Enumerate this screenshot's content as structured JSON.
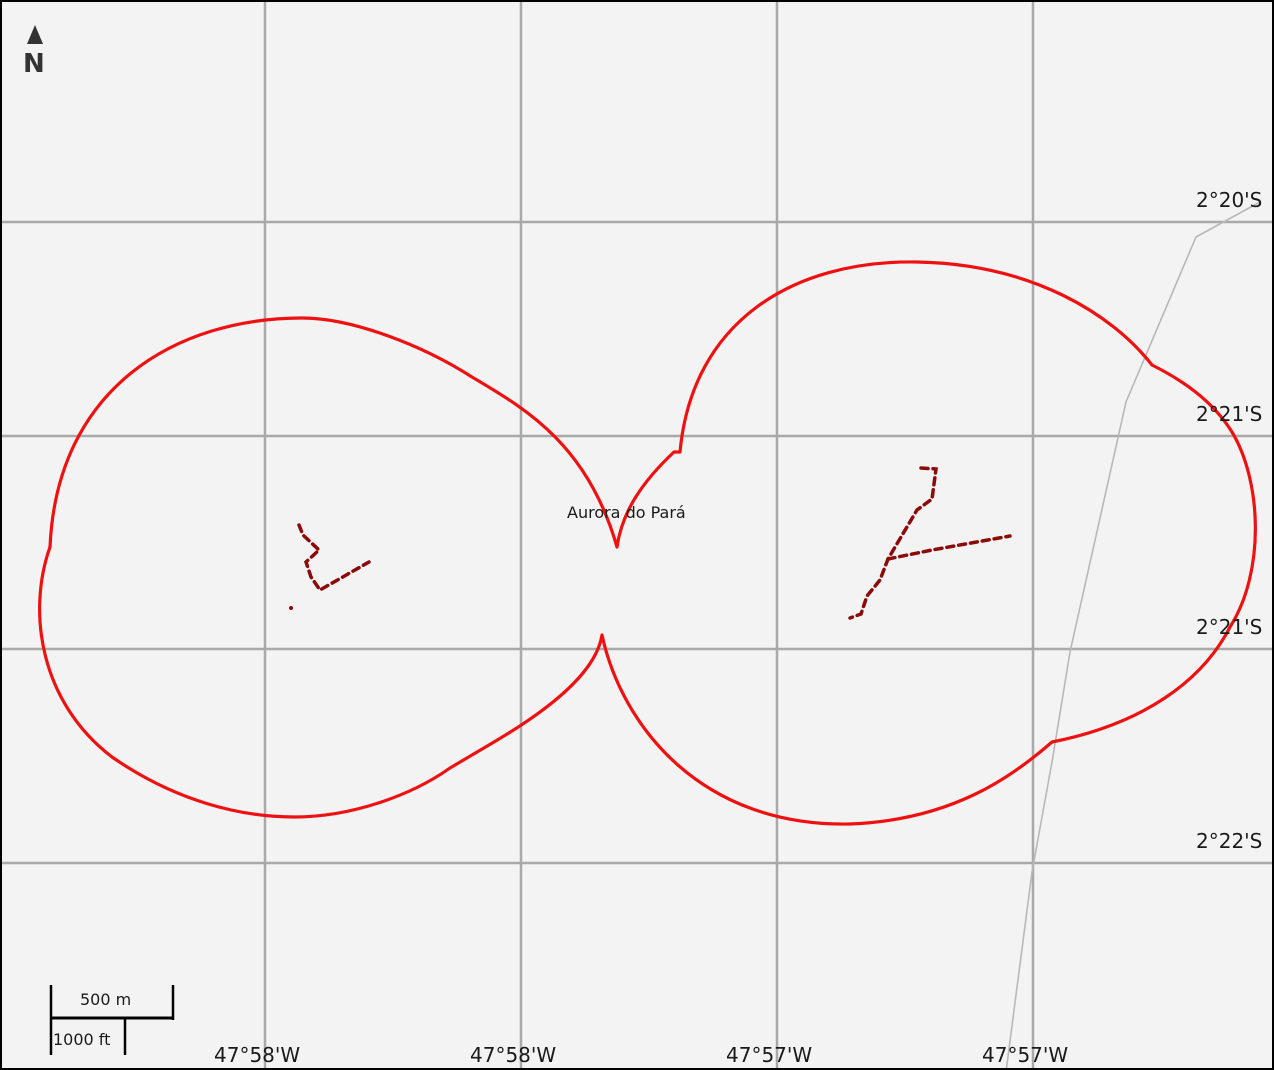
{
  "map": {
    "north_arrow": {
      "letter": "N",
      "icon": "north-arrow-icon"
    },
    "place_label": "Aurora do Pará",
    "latitude_labels": [
      "2°20'S",
      "2°21'S",
      "2°21'S",
      "2°22'S"
    ],
    "longitude_labels": [
      "47°58'W",
      "47°58'W",
      "47°57'W",
      "47°57'W"
    ],
    "scale_bar": {
      "metric": "500 m",
      "imperial": "1000 ft"
    },
    "colors": {
      "background": "#f3f3f3",
      "grid": "#a9a9a9",
      "boundary": "#ee1111",
      "track": "#8b0a0a",
      "road": "#b8b8b8"
    }
  }
}
